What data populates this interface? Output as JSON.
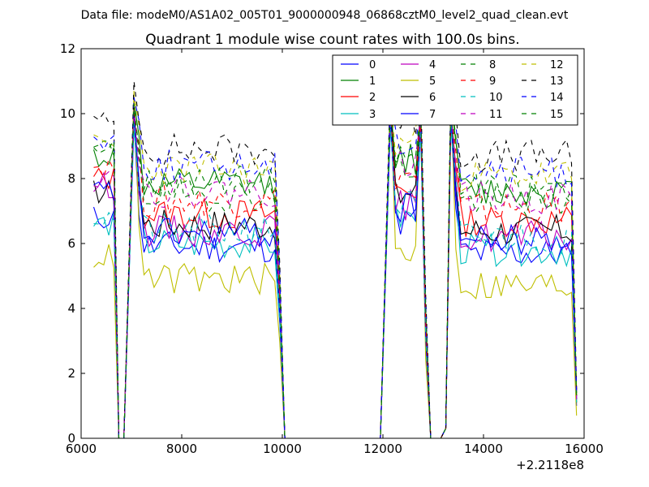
{
  "chart_data": {
    "type": "line",
    "suptitle": "Data file: modeM0/AS1A02_005T01_9000000948_06868cztM0_level2_quad_clean.evt",
    "title": "Quadrant 1 module wise count rates with 100.0s bins.",
    "xlabel": "",
    "ylabel": "",
    "x_offset_label": "+2.2118e8",
    "xlim": [
      6000,
      16000
    ],
    "ylim": [
      0,
      12
    ],
    "xticks": [
      6000,
      8000,
      10000,
      12000,
      14000,
      16000
    ],
    "yticks": [
      0,
      2,
      4,
      6,
      8,
      10,
      12
    ],
    "grid": false,
    "legend_position": "top-right",
    "legend_columns": 4,
    "bin_seconds": 100,
    "active_segments": [
      [
        6250,
        6650
      ],
      [
        7050,
        9850
      ],
      [
        12150,
        12550
      ],
      [
        13400,
        15850
      ]
    ],
    "transitions": {
      "dip_end": 6650,
      "dip_zero_start": 6750,
      "dip_zero_end": 6850,
      "peak1": 7050,
      "drop_last": 9850,
      "zero_start": 10050,
      "rise_start": 11950,
      "peak2": 12150,
      "hump_peak": 12750,
      "dip2_zero_start": 12950,
      "dip2_zero_end": 13150,
      "rise3_start": 13250,
      "peak3": 13350,
      "tail_last": 15850
    },
    "series": [
      {
        "name": "0",
        "color": "#0000ff",
        "dashed": false,
        "level": 5.9,
        "first": 6.8,
        "peak1": 9.8,
        "peak2": 9.8,
        "peak3": 9.8,
        "end": 1.0,
        "seed": 11
      },
      {
        "name": "1",
        "color": "#008000",
        "dashed": false,
        "level": 7.8,
        "first": 8.7,
        "peak1": 10.4,
        "peak2": 10.4,
        "peak3": 10.4,
        "end": 1.1,
        "seed": 12
      },
      {
        "name": "2",
        "color": "#ff0000",
        "dashed": false,
        "level": 6.9,
        "first": 8.0,
        "peak1": 10.0,
        "peak2": 10.0,
        "peak3": 10.0,
        "end": 1.5,
        "seed": 13
      },
      {
        "name": "3",
        "color": "#00bfbf",
        "dashed": false,
        "level": 6.0,
        "first": 6.6,
        "peak1": 9.6,
        "peak2": 9.6,
        "peak3": 9.6,
        "end": 1.2,
        "seed": 14
      },
      {
        "name": "4",
        "color": "#bf00bf",
        "dashed": false,
        "level": 6.4,
        "first": 7.8,
        "peak1": 9.9,
        "peak2": 9.9,
        "peak3": 9.9,
        "end": 1.3,
        "seed": 15
      },
      {
        "name": "5",
        "color": "#bfbf00",
        "dashed": false,
        "level": 4.9,
        "first": 5.6,
        "peak1": 10.7,
        "peak2": 10.7,
        "peak3": 10.7,
        "end": 0.7,
        "seed": 16
      },
      {
        "name": "6",
        "color": "#000000",
        "dashed": false,
        "level": 6.6,
        "first": 7.6,
        "peak1": 10.2,
        "peak2": 10.2,
        "peak3": 10.2,
        "end": 1.4,
        "seed": 17
      },
      {
        "name": "7",
        "color": "#0000ff",
        "dashed": false,
        "level": 6.3,
        "first": 7.6,
        "peak1": 9.9,
        "peak2": 9.9,
        "peak3": 9.9,
        "end": 1.2,
        "seed": 18
      },
      {
        "name": "8",
        "color": "#008000",
        "dashed": true,
        "level": 7.5,
        "first": 8.9,
        "peak1": 10.2,
        "peak2": 10.2,
        "peak3": 10.2,
        "end": 1.4,
        "seed": 19
      },
      {
        "name": "9",
        "color": "#ff0000",
        "dashed": true,
        "level": 7.3,
        "first": 8.4,
        "peak1": 10.0,
        "peak2": 10.0,
        "peak3": 10.0,
        "end": 1.3,
        "seed": 20
      },
      {
        "name": "10",
        "color": "#00bfbf",
        "dashed": true,
        "level": 6.4,
        "first": 6.8,
        "peak1": 9.7,
        "peak2": 9.7,
        "peak3": 9.7,
        "end": 1.1,
        "seed": 21
      },
      {
        "name": "11",
        "color": "#bf00bf",
        "dashed": true,
        "level": 7.6,
        "first": 8.1,
        "peak1": 10.1,
        "peak2": 10.1,
        "peak3": 10.1,
        "end": 1.2,
        "seed": 22
      },
      {
        "name": "12",
        "color": "#bfbf00",
        "dashed": true,
        "level": 8.3,
        "first": 9.0,
        "peak1": 10.6,
        "peak2": 10.6,
        "peak3": 10.6,
        "end": 1.3,
        "seed": 23
      },
      {
        "name": "13",
        "color": "#000000",
        "dashed": true,
        "level": 8.9,
        "first": 9.7,
        "peak1": 11.0,
        "peak2": 11.0,
        "peak3": 11.0,
        "end": 1.5,
        "seed": 24
      },
      {
        "name": "14",
        "color": "#0000ff",
        "dashed": true,
        "level": 8.4,
        "first": 9.2,
        "peak1": 10.5,
        "peak2": 10.5,
        "peak3": 10.5,
        "end": 1.4,
        "seed": 25
      },
      {
        "name": "15",
        "color": "#008000",
        "dashed": true,
        "level": 7.9,
        "first": 9.0,
        "peak1": 10.3,
        "peak2": 10.3,
        "peak3": 10.3,
        "end": 1.3,
        "seed": 26
      }
    ]
  }
}
